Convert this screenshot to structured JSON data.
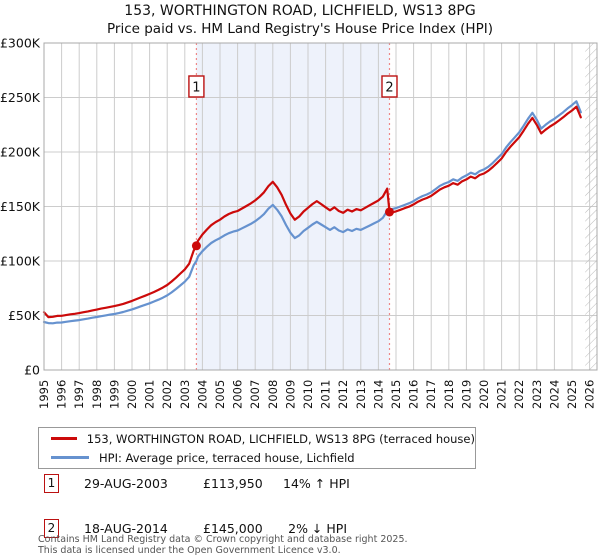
{
  "title": "153, WORTHINGTON ROAD, LICHFIELD, WS13 8PG",
  "subtitle": "Price paid vs. HM Land Registry's House Price Index (HPI)",
  "legend": {
    "series1": "153, WORTHINGTON ROAD, LICHFIELD, WS13 8PG (terraced house)",
    "series2": "HPI: Average price, terraced house, Lichfield"
  },
  "transactions": [
    {
      "num": "1",
      "date": "29-AUG-2003",
      "price": "£113,950",
      "vs_hpi": "14% ↑ HPI"
    },
    {
      "num": "2",
      "date": "18-AUG-2014",
      "price": "£145,000",
      "vs_hpi": "2% ↓ HPI"
    }
  ],
  "footer": {
    "line1": "Contains HM Land Registry data © Crown copyright and database right 2025.",
    "line2": "This data is licensed under the Open Government Licence v3.0."
  },
  "colors": {
    "property": "#cc0a0a",
    "hpi": "#6692cf",
    "grid": "#cccccc",
    "plot_border": "#a8a8a8",
    "shade": "#eef2fb",
    "marker_line": "#ee8888",
    "marker_box_border": "#bb1111",
    "hatch": "#bbbbbb",
    "dot": "#cc0a0a"
  },
  "chart_data": {
    "type": "line",
    "unit": "GBP thousands",
    "xlim": [
      1995,
      2026.42
    ],
    "ylim": [
      0,
      300
    ],
    "x_ticks": [
      1995,
      1996,
      1997,
      1998,
      1999,
      2000,
      2001,
      2002,
      2003,
      2004,
      2005,
      2006,
      2007,
      2008,
      2009,
      2010,
      2011,
      2012,
      2013,
      2014,
      2015,
      2016,
      2017,
      2018,
      2019,
      2020,
      2021,
      2022,
      2023,
      2024,
      2025,
      2026
    ],
    "y_tick_values": [
      0,
      50,
      100,
      150,
      200,
      250,
      300
    ],
    "y_tick_labels": [
      "£0",
      "£50K",
      "£100K",
      "£150K",
      "£200K",
      "£250K",
      "£300K"
    ],
    "shaded_region": [
      2003.66,
      2014.63
    ],
    "hatch_region": [
      2025.75,
      2026.42
    ],
    "sale_markers": [
      {
        "label": "1",
        "x": 2003.66,
        "value": 113.95
      },
      {
        "label": "2",
        "x": 2014.63,
        "value": 145
      }
    ],
    "x": [
      1995,
      1995.25,
      1995.5,
      1995.75,
      1996,
      1996.25,
      1996.5,
      1996.75,
      1997,
      1997.25,
      1997.5,
      1997.75,
      1998,
      1998.25,
      1998.5,
      1998.75,
      1999,
      1999.25,
      1999.5,
      1999.75,
      2000,
      2000.25,
      2000.5,
      2000.75,
      2001,
      2001.25,
      2001.5,
      2001.75,
      2002,
      2002.25,
      2002.5,
      2002.75,
      2003,
      2003.25,
      2003.5,
      2003.66,
      2003.75,
      2004,
      2004.25,
      2004.5,
      2004.75,
      2005,
      2005.25,
      2005.5,
      2005.75,
      2006,
      2006.25,
      2006.5,
      2006.75,
      2007,
      2007.25,
      2007.5,
      2007.75,
      2008,
      2008.25,
      2008.5,
      2008.75,
      2009,
      2009.25,
      2009.5,
      2009.75,
      2010,
      2010.25,
      2010.5,
      2010.75,
      2011,
      2011.25,
      2011.5,
      2011.75,
      2012,
      2012.25,
      2012.5,
      2012.75,
      2013,
      2013.25,
      2013.5,
      2013.75,
      2014,
      2014.25,
      2014.5,
      2014.63,
      2014.75,
      2015,
      2015.25,
      2015.5,
      2015.75,
      2016,
      2016.25,
      2016.5,
      2016.75,
      2017,
      2017.25,
      2017.5,
      2017.75,
      2018,
      2018.25,
      2018.5,
      2018.75,
      2019,
      2019.25,
      2019.5,
      2019.75,
      2020,
      2020.25,
      2020.5,
      2020.75,
      2021,
      2021.25,
      2021.5,
      2021.75,
      2022,
      2022.25,
      2022.5,
      2022.75,
      2023,
      2023.25,
      2023.5,
      2023.75,
      2024,
      2024.25,
      2024.5,
      2024.75,
      2025,
      2025.25,
      2025.5
    ],
    "series": [
      {
        "name": "153, WORTHINGTON ROAD, LICHFIELD, WS13 8PG (terraced house)",
        "color": "#cc0a0a",
        "values": [
          53,
          48.5,
          48.8,
          49.6,
          49.7,
          50.4,
          51.1,
          51.6,
          52.2,
          53,
          53.8,
          54.7,
          55.4,
          56.3,
          57.1,
          57.9,
          58.6,
          59.5,
          60.6,
          62,
          63.4,
          65,
          66.6,
          68.2,
          69.8,
          71.6,
          73.5,
          75.6,
          78,
          81.2,
          84.7,
          88.5,
          92.3,
          97.5,
          109.4,
          113.95,
          118.6,
          124.3,
          128.8,
          132.8,
          135.7,
          137.9,
          140.8,
          143.1,
          144.8,
          145.9,
          148.2,
          150.5,
          152.8,
          155.6,
          159,
          163,
          168.7,
          172.7,
          167.6,
          160.7,
          151.6,
          143.6,
          137.9,
          140.8,
          145.4,
          148.8,
          152.2,
          155,
          152.2,
          149.3,
          146.5,
          149.3,
          145.9,
          144.2,
          147.1,
          145.4,
          147.6,
          146.5,
          148.8,
          151.1,
          153.3,
          155.6,
          159,
          166.4,
          145,
          144.6,
          145.5,
          147,
          148.5,
          149.9,
          151.9,
          154.4,
          156.3,
          157.8,
          159.7,
          162.7,
          165.6,
          167.6,
          169.1,
          171.5,
          170,
          173,
          174.9,
          177.4,
          175.9,
          178.9,
          180.3,
          182.8,
          186.2,
          190.1,
          194,
          199.9,
          204.8,
          209.2,
          213.6,
          219.5,
          225.9,
          231.3,
          224.9,
          217.1,
          220.5,
          223.4,
          225.9,
          228.8,
          231.8,
          235.2,
          238.1,
          241.6,
          231.8
        ]
      },
      {
        "name": "HPI: Average price, terraced house, Lichfield",
        "color": "#6692cf",
        "values": [
          44,
          43,
          42.8,
          43.5,
          43.6,
          44.2,
          44.8,
          45.3,
          45.8,
          46.5,
          47.2,
          48,
          48.6,
          49.4,
          50.1,
          50.8,
          51.4,
          52.2,
          53.2,
          54.4,
          55.6,
          57,
          58.4,
          59.8,
          61.2,
          62.8,
          64.5,
          66.3,
          68.4,
          71.2,
          74.3,
          77.6,
          81,
          85.5,
          96,
          100,
          104,
          109,
          113,
          116.5,
          119,
          121,
          123.5,
          125.5,
          127,
          128,
          130,
          132,
          134,
          136.5,
          139.5,
          143,
          148,
          151.5,
          147,
          141,
          133,
          126,
          121,
          123.5,
          127.5,
          130.5,
          133.5,
          136,
          133.5,
          131,
          128.5,
          131,
          128,
          126.5,
          129,
          127.5,
          129.5,
          128.5,
          130.5,
          132.5,
          134.5,
          136.5,
          139.5,
          146,
          148,
          147.5,
          148.5,
          150,
          151.5,
          153,
          155,
          157.5,
          159.5,
          161,
          163,
          166,
          169,
          171,
          172.5,
          175,
          173.5,
          176.5,
          178.5,
          181,
          179.5,
          182.5,
          184,
          186.5,
          190,
          194,
          198,
          204,
          209,
          213.5,
          218,
          224,
          230.5,
          236,
          229.5,
          221.5,
          225,
          228,
          230.5,
          233.5,
          236.5,
          240,
          243,
          246.5,
          236.5
        ]
      }
    ]
  }
}
